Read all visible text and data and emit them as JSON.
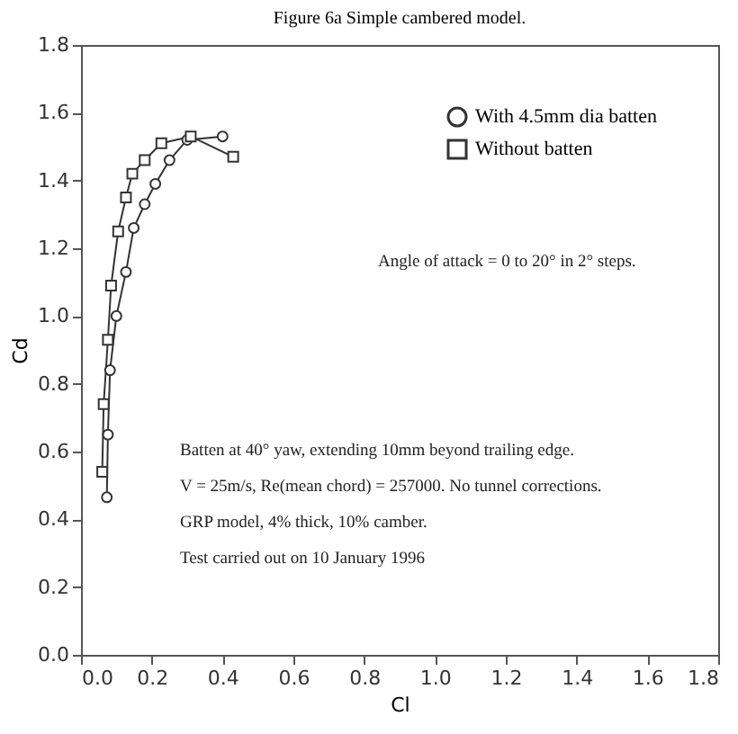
{
  "chart_data": {
    "type": "line",
    "title": "Figure 6a Simple cambered model.",
    "xlabel": "Cl",
    "ylabel": "Cd",
    "xlim": [
      0,
      1.8
    ],
    "ylim": [
      0,
      1.8
    ],
    "xticks": [
      {
        "value": 0,
        "label": "0.0"
      },
      {
        "value": 0.2,
        "label": "0.2"
      },
      {
        "value": 0.4,
        "label": "0.4"
      },
      {
        "value": 0.6,
        "label": "0.6"
      },
      {
        "value": 0.8,
        "label": "0.8"
      },
      {
        "value": 1,
        "label": "1.0"
      },
      {
        "value": 1.2,
        "label": "1.2"
      },
      {
        "value": 1.4,
        "label": "1.4"
      },
      {
        "value": 1.6,
        "label": "1.6"
      },
      {
        "value": 1.8,
        "label": "1.8"
      }
    ],
    "yticks": [
      {
        "value": 0,
        "label": "0.0"
      },
      {
        "value": 0.2,
        "label": "0.2"
      },
      {
        "value": 0.4,
        "label": "0.4"
      },
      {
        "value": 0.6,
        "label": "0.6"
      },
      {
        "value": 0.8,
        "label": "0.8"
      },
      {
        "value": 1,
        "label": "1.0"
      },
      {
        "value": 1.2,
        "label": "1.2"
      },
      {
        "value": 1.4,
        "label": "1.4"
      },
      {
        "value": 1.6,
        "label": "1.6"
      },
      {
        "value": 1.8,
        "label": "1.8"
      }
    ],
    "grid": false,
    "legend": "top right",
    "line_style": "solid",
    "series": [
      {
        "name": "With 4.5mm dia batten",
        "color": "#333333",
        "marker": "circle",
        "x": [
          0.073,
          0.076,
          0.082,
          0.1,
          0.127,
          0.149,
          0.18,
          0.21,
          0.25,
          0.3,
          0.4
        ],
        "values": [
          0.465,
          0.65,
          0.84,
          1.0,
          1.13,
          1.26,
          1.33,
          1.39,
          1.46,
          1.52,
          1.53
        ]
      },
      {
        "name": "Without batten",
        "color": "#333333",
        "marker": "square",
        "x": [
          0.06,
          0.064,
          0.076,
          0.085,
          0.105,
          0.127,
          0.145,
          0.18,
          0.227,
          0.31,
          0.43
        ],
        "values": [
          0.54,
          0.74,
          0.93,
          1.09,
          1.25,
          1.35,
          1.42,
          1.46,
          1.51,
          1.53,
          1.47
        ]
      }
    ],
    "annotations": [
      "Angle of attack = 0 to 20° in 2° steps.",
      "Batten at 40° yaw, extending 10mm beyond trailing edge.",
      "V = 25m/s, Re(mean chord) = 257000. No tunnel corrections.",
      "GRP model, 4% thick, 10% camber.",
      "Test carried out on 10 January 1996"
    ]
  }
}
